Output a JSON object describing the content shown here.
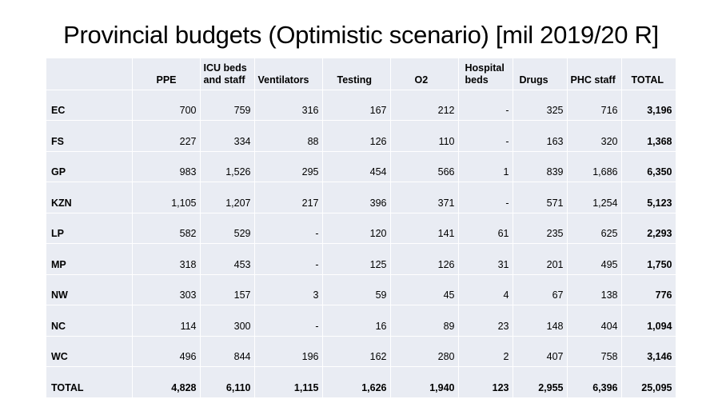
{
  "title": "Provincial budgets (Optimistic scenario) [mil 2019/20 R]",
  "headers": [
    "",
    "PPE",
    "ICU beds and staff",
    "Ventilators",
    "Testing",
    "O2",
    "Hospital beds",
    "Drugs",
    "PHC staff",
    "TOTAL"
  ],
  "rows": [
    {
      "province": "EC",
      "values": [
        "700",
        "759",
        "316",
        "167",
        "212",
        "-",
        "325",
        "716"
      ],
      "total": "3,196"
    },
    {
      "province": "FS",
      "values": [
        "227",
        "334",
        "88",
        "126",
        "110",
        "-",
        "163",
        "320"
      ],
      "total": "1,368"
    },
    {
      "province": "GP",
      "values": [
        "983",
        "1,526",
        "295",
        "454",
        "566",
        "1",
        "839",
        "1,686"
      ],
      "total": "6,350"
    },
    {
      "province": "KZN",
      "values": [
        "1,105",
        "1,207",
        "217",
        "396",
        "371",
        "-",
        "571",
        "1,254"
      ],
      "total": "5,123"
    },
    {
      "province": "LP",
      "values": [
        "582",
        "529",
        "-",
        "120",
        "141",
        "61",
        "235",
        "625"
      ],
      "total": "2,293"
    },
    {
      "province": "MP",
      "values": [
        "318",
        "453",
        "-",
        "125",
        "126",
        "31",
        "201",
        "495"
      ],
      "total": "1,750"
    },
    {
      "province": "NW",
      "values": [
        "303",
        "157",
        "3",
        "59",
        "45",
        "4",
        "67",
        "138"
      ],
      "total": "776"
    },
    {
      "province": "NC",
      "values": [
        "114",
        "300",
        "-",
        "16",
        "89",
        "23",
        "148",
        "404"
      ],
      "total": "1,094"
    },
    {
      "province": "WC",
      "values": [
        "496",
        "844",
        "196",
        "162",
        "280",
        "2",
        "407",
        "758"
      ],
      "total": "3,146"
    }
  ],
  "total_row": {
    "label": "TOTAL",
    "values": [
      "4,828",
      "6,110",
      "1,115",
      "1,626",
      "1,940",
      "123",
      "2,955",
      "6,396"
    ],
    "total": "25,095"
  }
}
